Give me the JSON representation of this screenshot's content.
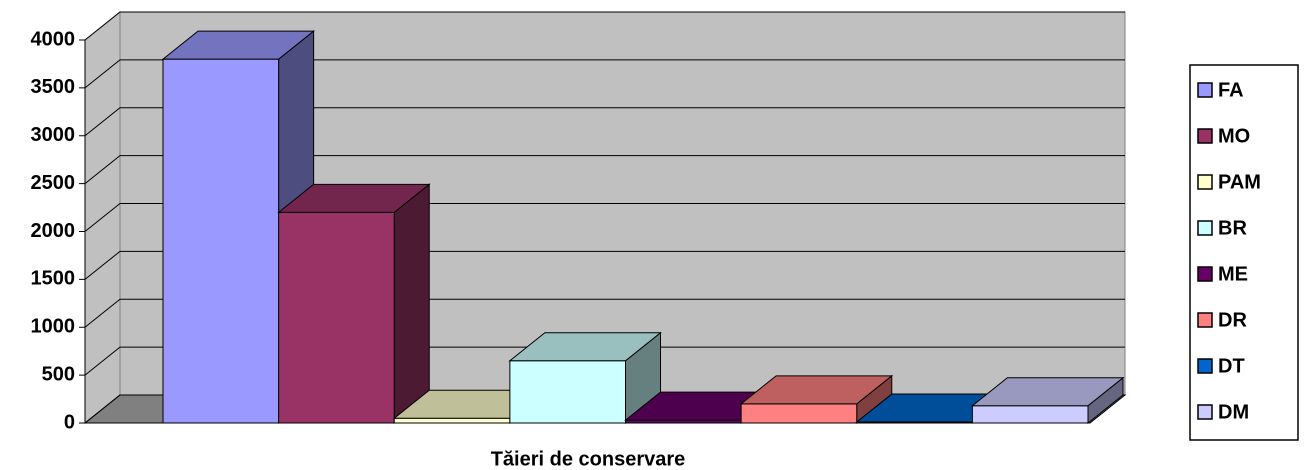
{
  "chart_data": {
    "type": "bar",
    "categories": [
      "Tăieri de conservare"
    ],
    "series": [
      {
        "name": "FA",
        "color": "#9999ff",
        "values": [
          3800
        ]
      },
      {
        "name": "MO",
        "color": "#993366",
        "values": [
          2200
        ]
      },
      {
        "name": "PAM",
        "color": "#ffffcc",
        "values": [
          50
        ]
      },
      {
        "name": "BR",
        "color": "#ccffff",
        "values": [
          650
        ]
      },
      {
        "name": "ME",
        "color": "#660066",
        "values": [
          30
        ]
      },
      {
        "name": "DR",
        "color": "#ff8080",
        "values": [
          200
        ]
      },
      {
        "name": "DT",
        "color": "#0066cc",
        "values": [
          10
        ]
      },
      {
        "name": "DM",
        "color": "#ccccff",
        "values": [
          180
        ]
      }
    ],
    "ylim": [
      0,
      4000
    ],
    "yticks": [
      0,
      500,
      1000,
      1500,
      2000,
      2500,
      3000,
      3500,
      4000
    ],
    "grid": true,
    "legend": "right"
  }
}
